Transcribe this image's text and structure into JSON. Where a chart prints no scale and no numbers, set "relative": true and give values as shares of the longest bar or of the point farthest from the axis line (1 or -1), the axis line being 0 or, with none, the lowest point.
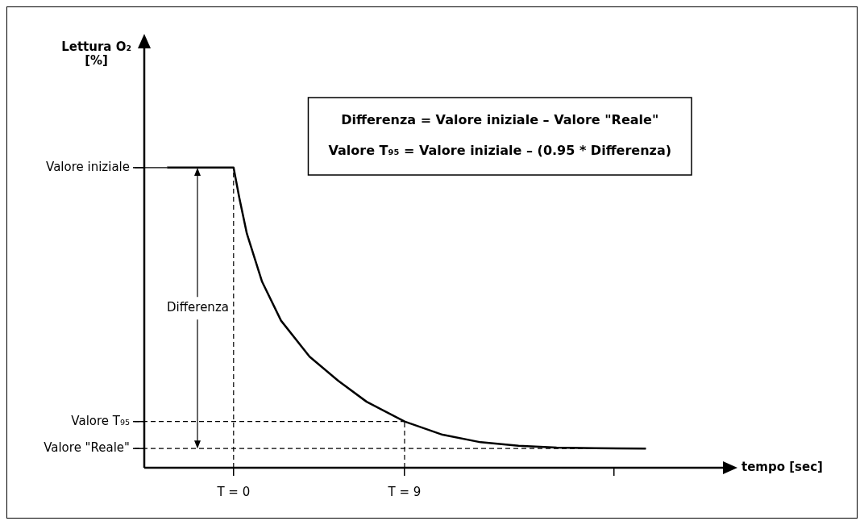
{
  "chart_data": {
    "type": "line",
    "relative": true,
    "xlabel": "tempo [sec]",
    "x": [
      -3.5,
      0,
      0.3,
      0.7,
      1.5,
      2.5,
      4,
      5.5,
      7,
      9,
      11,
      13,
      15,
      17,
      19,
      21.7
    ],
    "series": [
      {
        "color": "#000000",
        "values": [
          1,
          1,
          0.9,
          0.78,
          0.62,
          0.49,
          0.37,
          0.29,
          0.22,
          0.154,
          0.11,
          0.085,
          0.073,
          0.067,
          0.065,
          0.064
        ]
      }
    ],
    "xlim": [
      -4.7,
      25.8
    ],
    "xticks": [
      {
        "value": 0,
        "label": "T = 0"
      },
      {
        "value": 9,
        "label": "T = 9"
      },
      {
        "value": 20,
        "label": null
      }
    ],
    "ref_lines": [
      {
        "axis": "y",
        "value": 1,
        "label": "Valore iniziale",
        "line_style": "solid"
      },
      {
        "axis": "y",
        "value": 0.154,
        "label": "Valore T₉₅",
        "line_style": "dashed"
      },
      {
        "axis": "y",
        "value": 0.064,
        "label": "Valore \"Reale\"",
        "line_style": "dashed"
      },
      {
        "axis": "x",
        "value": 0,
        "line_style": "dashed"
      },
      {
        "axis": "x",
        "value": 9,
        "line_style": "dashed"
      }
    ],
    "annotations": [
      "Lettura O₂ [%]",
      "Differenza",
      "Differenza = Valore iniziale – Valore \"Reale\"",
      "Valore T₉₅ = Valore iniziale – (0.95 * Differenza)"
    ],
    "grid": false,
    "legend": false,
    "marker": "none",
    "line_style": "solid"
  }
}
